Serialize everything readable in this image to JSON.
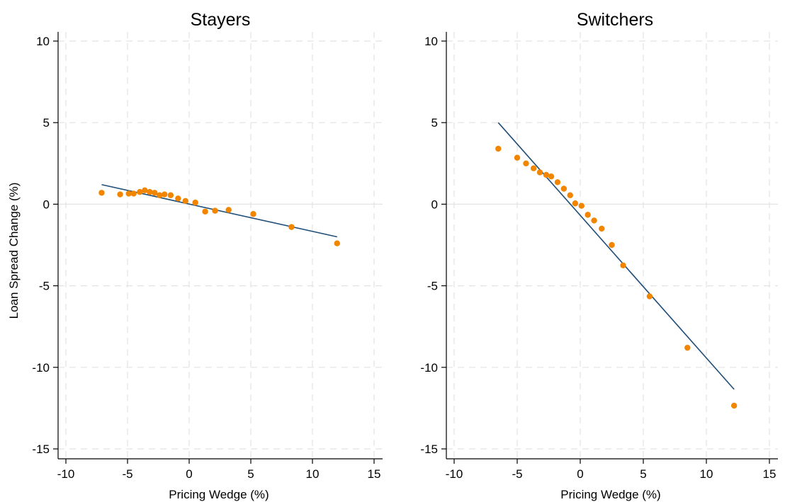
{
  "chart_data": [
    {
      "type": "scatter",
      "title": "Stayers",
      "xlabel": "Pricing Wedge (%)",
      "ylabel": "Loan Spread Change (%)",
      "xlim": [
        -10,
        15
      ],
      "ylim": [
        -15,
        10
      ],
      "xticks": [
        -10,
        -5,
        0,
        5,
        10,
        15
      ],
      "yticks": [
        -15,
        -10,
        -5,
        0,
        5,
        10
      ],
      "grid": true,
      "colors": {
        "points": "#f28500",
        "fit": "#1f4e79",
        "grid": "#e3e3e3"
      },
      "series": [
        {
          "kind": "points",
          "x": [
            -7.1,
            -5.6,
            -4.9,
            -4.5,
            -4.0,
            -3.6,
            -3.2,
            -2.8,
            -2.4,
            -2.0,
            -1.5,
            -0.9,
            -0.3,
            0.5,
            1.3,
            2.1,
            3.2,
            5.2,
            8.3,
            12.0
          ],
          "y": [
            0.7,
            0.6,
            0.65,
            0.65,
            0.75,
            0.85,
            0.75,
            0.7,
            0.55,
            0.6,
            0.55,
            0.35,
            0.2,
            0.1,
            -0.45,
            -0.4,
            -0.35,
            -0.6,
            -1.4,
            -2.4
          ]
        },
        {
          "kind": "fit",
          "x": [
            -7.1,
            12.0
          ],
          "y": [
            1.2,
            -2.0
          ]
        }
      ]
    },
    {
      "type": "scatter",
      "title": "Switchers",
      "xlabel": "Pricing Wedge (%)",
      "ylabel": "",
      "xlim": [
        -10,
        15
      ],
      "ylim": [
        -15,
        10
      ],
      "xticks": [
        -10,
        -5,
        0,
        5,
        10,
        15
      ],
      "yticks": [
        -15,
        -10,
        -5,
        0,
        5,
        10
      ],
      "grid": true,
      "colors": {
        "points": "#f28500",
        "fit": "#1f4e79",
        "grid": "#e3e3e3"
      },
      "series": [
        {
          "kind": "points",
          "x": [
            -6.5,
            -5.0,
            -4.3,
            -3.7,
            -3.2,
            -2.7,
            -2.3,
            -1.8,
            -1.3,
            -0.8,
            -0.4,
            0.1,
            0.6,
            1.1,
            1.7,
            2.5,
            3.4,
            5.5,
            8.5,
            12.2
          ],
          "y": [
            3.4,
            2.85,
            2.5,
            2.2,
            1.95,
            1.8,
            1.7,
            1.35,
            0.95,
            0.55,
            0.05,
            -0.1,
            -0.65,
            -1.0,
            -1.5,
            -2.5,
            -3.75,
            -5.65,
            -8.8,
            -12.35
          ]
        },
        {
          "kind": "fit",
          "x": [
            -6.5,
            12.2
          ],
          "y": [
            5.0,
            -11.35
          ]
        }
      ]
    }
  ]
}
